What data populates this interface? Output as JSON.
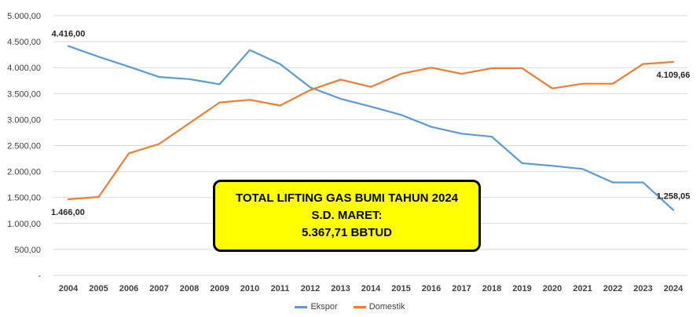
{
  "chart_data": {
    "type": "line",
    "categories": [
      "2004",
      "2005",
      "2006",
      "2007",
      "2008",
      "2009",
      "2010",
      "2011",
      "2012",
      "2013",
      "2014",
      "2015",
      "2016",
      "2017",
      "2018",
      "2019",
      "2020",
      "2021",
      "2022",
      "2023",
      "2024"
    ],
    "series": [
      {
        "name": "Ekspor",
        "color": "#5b9bd5",
        "values": [
          4416.0,
          4210,
          4020,
          3820,
          3780,
          3680,
          4340,
          4070,
          3620,
          3400,
          3250,
          3090,
          2860,
          2730,
          2670,
          2160,
          2110,
          2050,
          1790,
          1790,
          1258.05
        ]
      },
      {
        "name": "Domestik",
        "color": "#ed7d31",
        "values": [
          1466.0,
          1510,
          2350,
          2530,
          2930,
          3330,
          3380,
          3270,
          3570,
          3770,
          3630,
          3880,
          4000,
          3880,
          3990,
          3990,
          3600,
          3690,
          3690,
          4070,
          4109.66
        ]
      }
    ],
    "yticks": [
      "-",
      "500,00",
      "1.000,00",
      "1.500,00",
      "2.000,00",
      "2.500,00",
      "3.000,00",
      "3.500,00",
      "4.000,00",
      "4.500,00",
      "5.000,00"
    ],
    "ylim": [
      0,
      5000
    ],
    "grid": true,
    "legend_position": "bottom",
    "data_labels": [
      {
        "series": "Ekspor",
        "index": 0,
        "text": "4.416,00"
      },
      {
        "series": "Domestik",
        "index": 0,
        "text": "1.466,00"
      },
      {
        "series": "Domestik",
        "index": 20,
        "text": "4.109,66"
      },
      {
        "series": "Ekspor",
        "index": 20,
        "text": "1.258,05"
      }
    ],
    "annotation": {
      "line1": "TOTAL LIFTING GAS BUMI TAHUN 2024",
      "line2": "S.D. MARET:",
      "line3": "5.367,71 BBTUD"
    }
  }
}
